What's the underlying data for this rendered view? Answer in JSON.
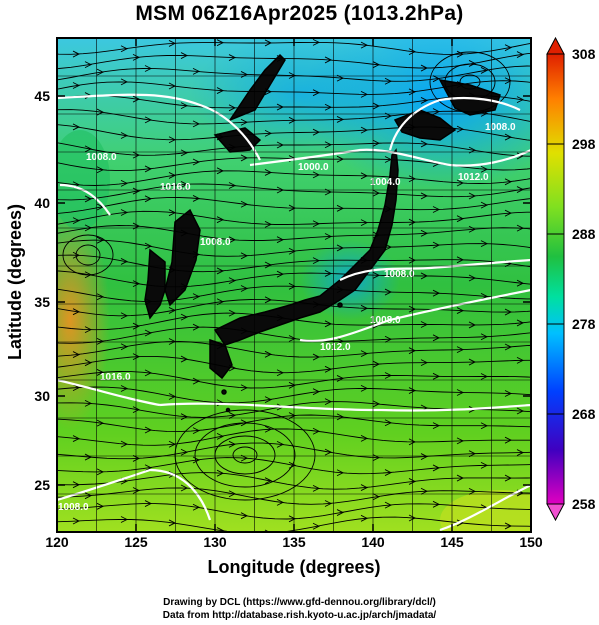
{
  "title": "MSM 06Z16Apr2025 (1013.2hPa)",
  "axes": {
    "xlabel": "Longitude (degrees)",
    "ylabel": "Latitude  (degrees)",
    "xticks": [
      "120",
      "125",
      "130",
      "135",
      "140",
      "145",
      "150"
    ],
    "yticks": [
      "25",
      "30",
      "35",
      "40",
      "45"
    ]
  },
  "colorbar": {
    "min": 258,
    "max": 308,
    "ticks": [
      "258",
      "268",
      "278",
      "288",
      "298",
      "308"
    ],
    "colors": [
      "#e000c0",
      "#4000c0",
      "#0040ff",
      "#00c0ff",
      "#00e0a0",
      "#20c040",
      "#80e020",
      "#e0e000",
      "#ff8000",
      "#e02000"
    ]
  },
  "contour_labels": [
    "1000.0",
    "1008.0",
    "1012.0",
    "1012.0",
    "1016.0",
    "1016.0",
    "1008.0",
    "1008.0",
    "1004.0",
    "1008.0",
    "1008.0",
    "1008.0"
  ],
  "credits": {
    "line1": "Drawing by DCL (https://www.gfd-dennou.org/library/dcl/)",
    "line2": "Data from http://database.rish.kyoto-u.ac.jp/arch/jmadata/"
  },
  "map": {
    "land_color": "#000000",
    "contour_color": "#ffffff",
    "ocean_field": "temperature (K) shading"
  }
}
